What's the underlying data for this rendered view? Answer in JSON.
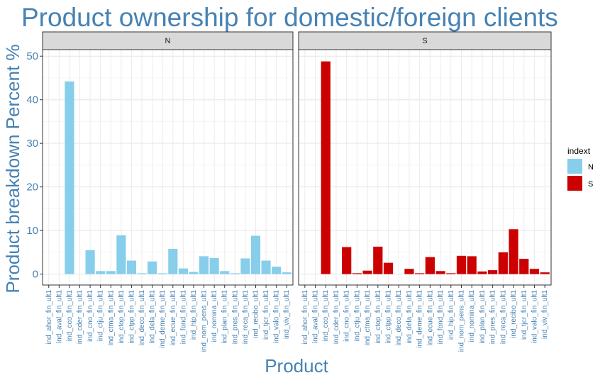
{
  "chart_data": {
    "type": "bar",
    "title": "Product ownership for domestic/foreign clients",
    "xlabel": "Product",
    "ylabel": "Product breakdown Percent %",
    "ylim": [
      -2.5,
      51.5
    ],
    "yticks": [
      0,
      10,
      20,
      30,
      40,
      50
    ],
    "grid": true,
    "legend": {
      "title": "indext",
      "position": "right",
      "entries": [
        "N",
        "S"
      ]
    },
    "facets": [
      "N",
      "S"
    ],
    "colors": {
      "N": "#87CEEB",
      "S": "#CC0000"
    },
    "categories": [
      "ind_ahor_fin_ult1",
      "ind_aval_fin_ult1",
      "ind_cco_fin_ult1",
      "ind_cder_fin_ult1",
      "ind_cno_fin_ult1",
      "ind_ctju_fin_ult1",
      "ind_ctma_fin_ult1",
      "ind_ctop_fin_ult1",
      "ind_ctpp_fin_ult1",
      "ind_deco_fin_ult1",
      "ind_dela_fin_ult1",
      "ind_deme_fin_ult1",
      "ind_ecue_fin_ult1",
      "ind_fond_fin_ult1",
      "ind_hip_fin_ult1",
      "ind_nom_pens_ult1",
      "ind_nomina_ult1",
      "ind_plan_fin_ult1",
      "ind_pres_fin_ult1",
      "ind_reca_fin_ult1",
      "ind_recibo_ult1",
      "ind_tjcr_fin_ult1",
      "ind_valo_fin_ult1",
      "ind_viv_fin_ult1"
    ],
    "series": [
      {
        "name": "N",
        "values": [
          0.0,
          0.0,
          44.2,
          0.0,
          5.5,
          0.7,
          0.7,
          8.9,
          3.1,
          0.2,
          2.9,
          0.2,
          5.8,
          1.3,
          0.5,
          4.1,
          3.7,
          0.7,
          0.2,
          3.6,
          8.8,
          3.1,
          1.7,
          0.4
        ]
      },
      {
        "name": "S",
        "values": [
          0.0,
          0.0,
          48.8,
          0.0,
          6.2,
          0.2,
          0.8,
          6.3,
          2.6,
          0.0,
          1.2,
          0.2,
          3.9,
          0.7,
          0.2,
          4.2,
          4.1,
          0.6,
          0.9,
          5.0,
          10.3,
          3.5,
          1.2,
          0.4
        ]
      }
    ]
  }
}
